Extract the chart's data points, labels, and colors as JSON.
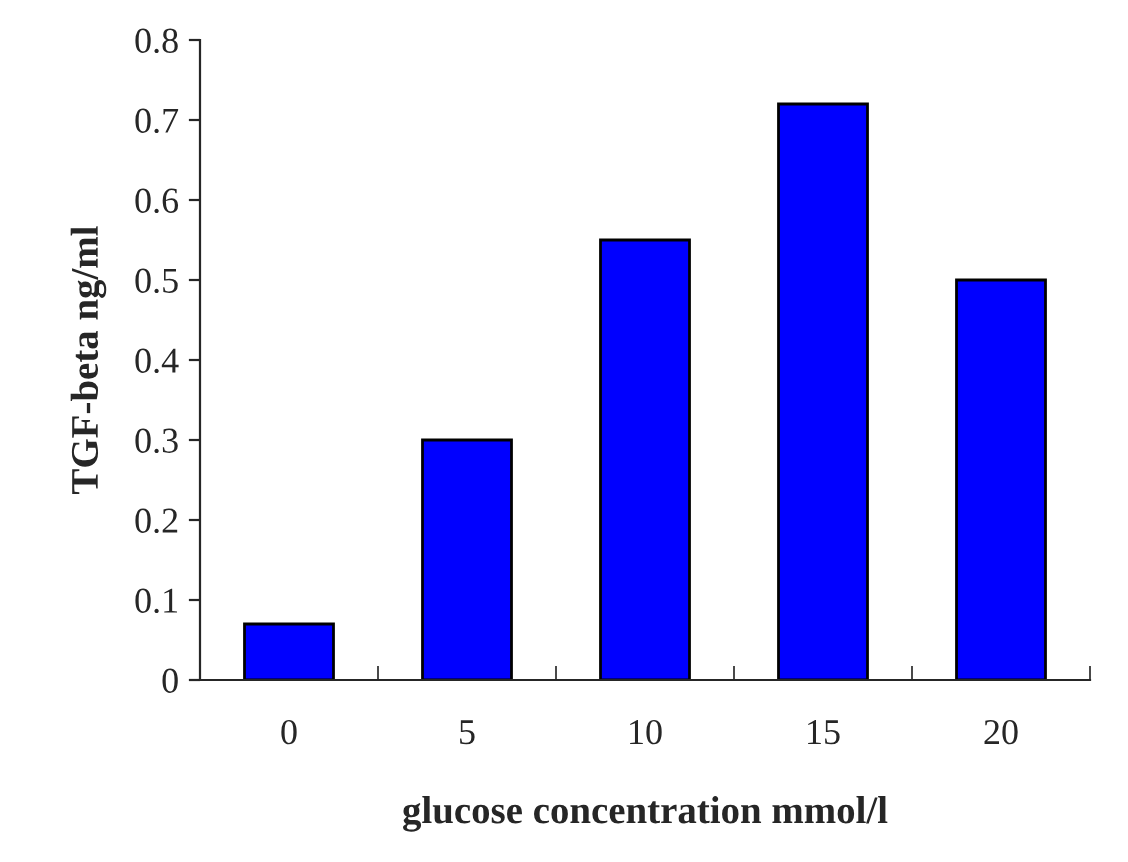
{
  "chart_data": {
    "type": "bar",
    "xlabel": "glucose concentration mmol/l",
    "ylabel": "TGF-beta ng/ml",
    "categories": [
      "0",
      "5",
      "10",
      "15",
      "20"
    ],
    "values": [
      0.07,
      0.3,
      0.55,
      0.72,
      0.5
    ],
    "color": "#0000ff",
    "ylim": [
      0,
      0.8
    ],
    "yticks": [
      {
        "value": 0,
        "label": "0"
      },
      0.1,
      0.2,
      0.3,
      0.4,
      0.5,
      0.6,
      0.7,
      0.8
    ],
    "grid": false,
    "legend": false
  }
}
